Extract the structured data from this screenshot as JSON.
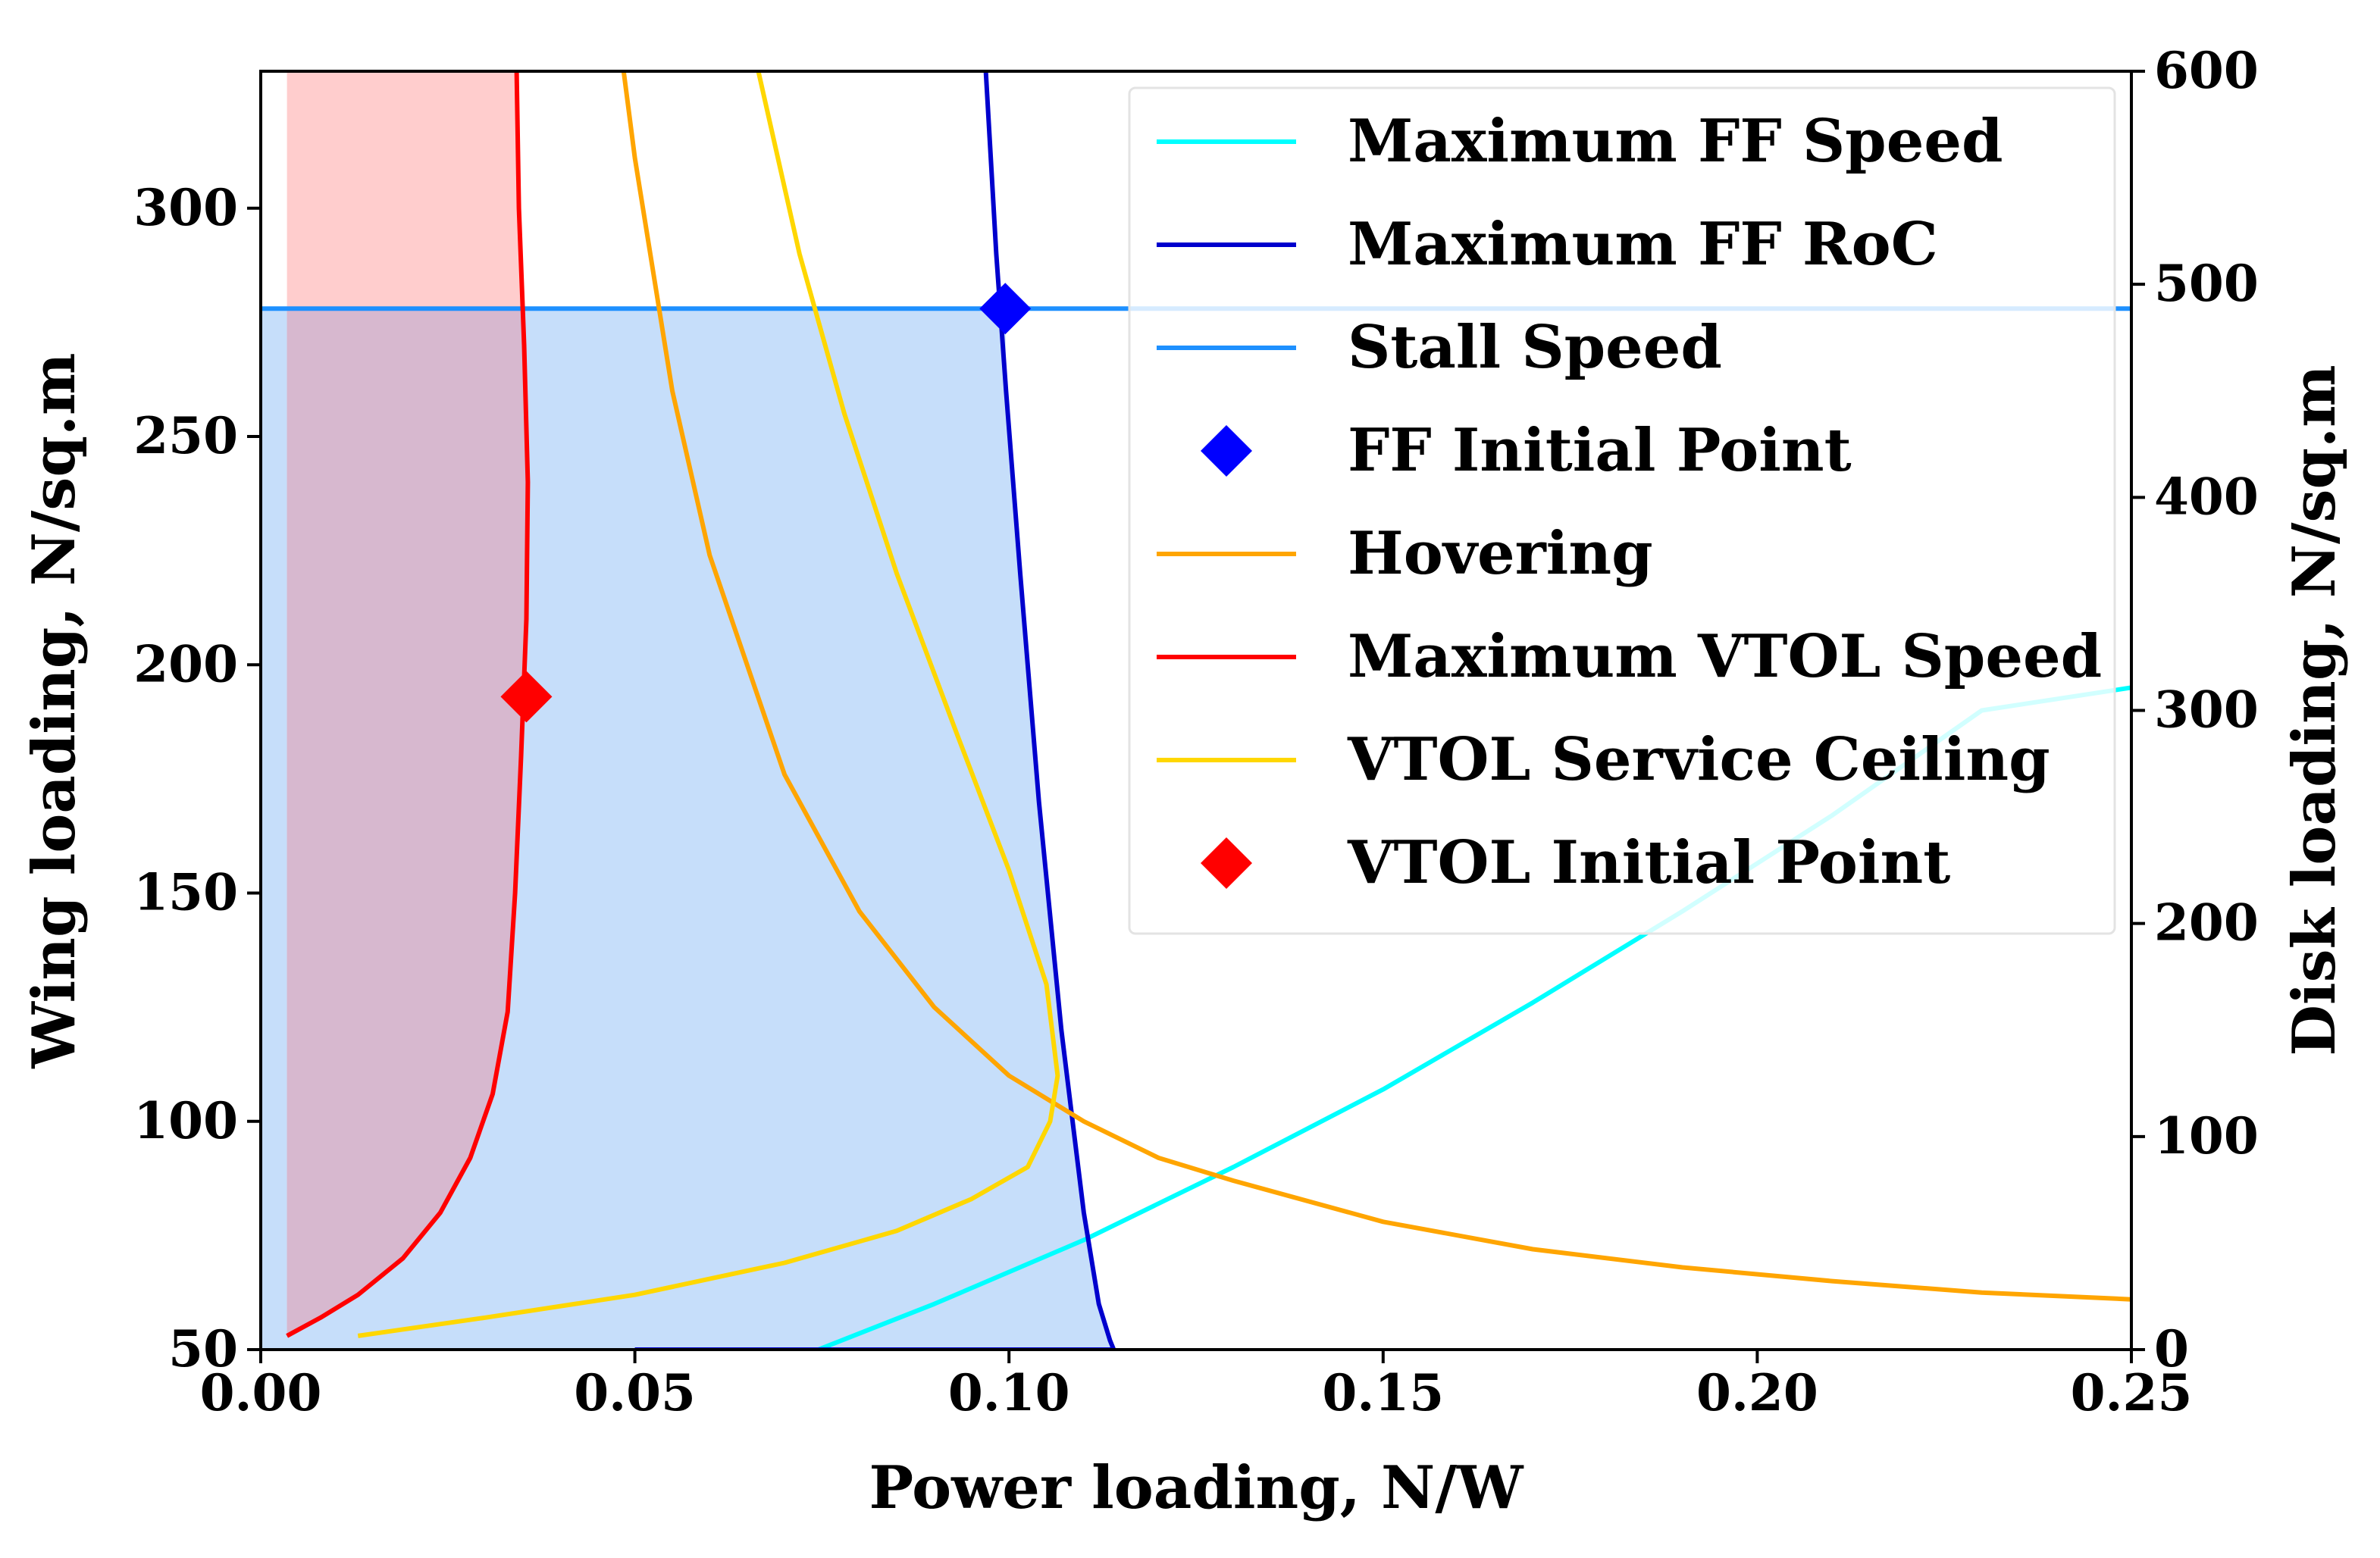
{
  "chart_data": {
    "type": "line",
    "xlabel": "Power loading, N/W",
    "ylabel": "Wing loading, N/sq.m",
    "y2label": "Disk loading, N/sq.m",
    "xlim": [
      0.0,
      0.25
    ],
    "ylim": [
      50,
      330
    ],
    "y2lim": [
      0,
      600
    ],
    "xticks": [
      "0.00",
      "0.05",
      "0.10",
      "0.15",
      "0.20",
      "0.25"
    ],
    "yticks": [
      "50",
      "100",
      "150",
      "200",
      "250",
      "300"
    ],
    "y2ticks": [
      "0",
      "100",
      "200",
      "300",
      "400",
      "500",
      "600"
    ],
    "legend_position": "top-right",
    "colors": {
      "ff_speed": "#00ffff",
      "ff_roc": "#0000cd",
      "stall": "#1e90ff",
      "ff_point": "#0000ff",
      "hover": "#ffa500",
      "vtol_speed": "#ff0000",
      "vtol_ceiling": "#ffd700",
      "vtol_point": "#ff0000",
      "blue_region": "#c6defa",
      "red_region": "#ffc4c4"
    },
    "series": [
      {
        "key": "ff_speed",
        "name": "Maximum FF Speed",
        "kind": "line",
        "x": [
          0.0745,
          0.09,
          0.11,
          0.13,
          0.15,
          0.17,
          0.19,
          0.21,
          0.23,
          0.25
        ],
        "y": [
          50,
          60,
          74,
          90,
          107,
          126,
          146,
          167,
          190,
          195
        ]
      },
      {
        "key": "ff_roc",
        "name": "Maximum FF RoC",
        "kind": "line",
        "x": [
          0.0969,
          0.0983,
          0.0996,
          0.1015,
          0.104,
          0.107,
          0.11,
          0.112,
          0.1135,
          0.114,
          0.05
        ],
        "y": [
          330,
          290,
          260,
          220,
          170,
          120,
          80,
          60,
          52,
          50,
          50
        ]
      },
      {
        "key": "stall",
        "name": "Stall Speed",
        "kind": "line",
        "x": [
          0.0,
          0.25
        ],
        "y": [
          278,
          278
        ]
      },
      {
        "key": "ff_point",
        "name": "FF Initial Point",
        "kind": "point",
        "x": [
          0.0995
        ],
        "y": [
          278
        ]
      },
      {
        "key": "hover",
        "name": "Hovering",
        "kind": "line",
        "x": [
          0.0485,
          0.05,
          0.055,
          0.06,
          0.07,
          0.08,
          0.09,
          0.1,
          0.11,
          0.12,
          0.13,
          0.15,
          0.17,
          0.19,
          0.21,
          0.23,
          0.25
        ],
        "y": [
          330,
          311,
          260,
          224,
          176,
          146,
          125,
          110,
          100,
          92,
          87,
          78,
          72,
          68,
          65,
          62.5,
          61
        ]
      },
      {
        "key": "vtol_speed",
        "name": "Maximum VTOL Speed",
        "kind": "line",
        "x": [
          0.0035,
          0.008,
          0.013,
          0.019,
          0.024,
          0.028,
          0.031,
          0.033,
          0.034,
          0.0348,
          0.0355,
          0.0357,
          0.0352,
          0.0345,
          0.0342
        ],
        "y": [
          53,
          57,
          62,
          70,
          80,
          92,
          106,
          124,
          150,
          180,
          210,
          240,
          270,
          300,
          330
        ]
      },
      {
        "key": "vtol_ceiling",
        "name": "VTOL Service Ceiling",
        "kind": "line",
        "x": [
          0.013,
          0.03,
          0.05,
          0.07,
          0.085,
          0.095,
          0.1025,
          0.1055,
          0.1065,
          0.105,
          0.1,
          0.093,
          0.085,
          0.078,
          0.072,
          0.0665
        ],
        "y": [
          53,
          57,
          62,
          69,
          76,
          83,
          90,
          100,
          110,
          130,
          155,
          185,
          220,
          255,
          290,
          330
        ]
      },
      {
        "key": "vtol_point",
        "name": "VTOL Initial Point",
        "kind": "point",
        "x": [
          0.0355
        ],
        "y": [
          193
        ]
      }
    ],
    "regions": [
      {
        "key": "blue_region",
        "x": [
          0.0,
          0.0995,
          0.0996,
          0.1015,
          0.104,
          0.107,
          0.11,
          0.112,
          0.1135,
          0.114,
          0.0
        ],
        "y": [
          278,
          278,
          260,
          220,
          170,
          120,
          80,
          60,
          52,
          50,
          50
        ]
      },
      {
        "key": "red_region",
        "x": [
          0.0035,
          0.0035,
          0.0342,
          0.0345,
          0.0352,
          0.0357,
          0.0355,
          0.0348,
          0.034,
          0.033,
          0.031,
          0.028,
          0.024,
          0.019,
          0.013,
          0.008
        ],
        "y": [
          53,
          330,
          330,
          300,
          270,
          240,
          210,
          180,
          150,
          124,
          106,
          92,
          80,
          70,
          62,
          57
        ]
      }
    ]
  }
}
